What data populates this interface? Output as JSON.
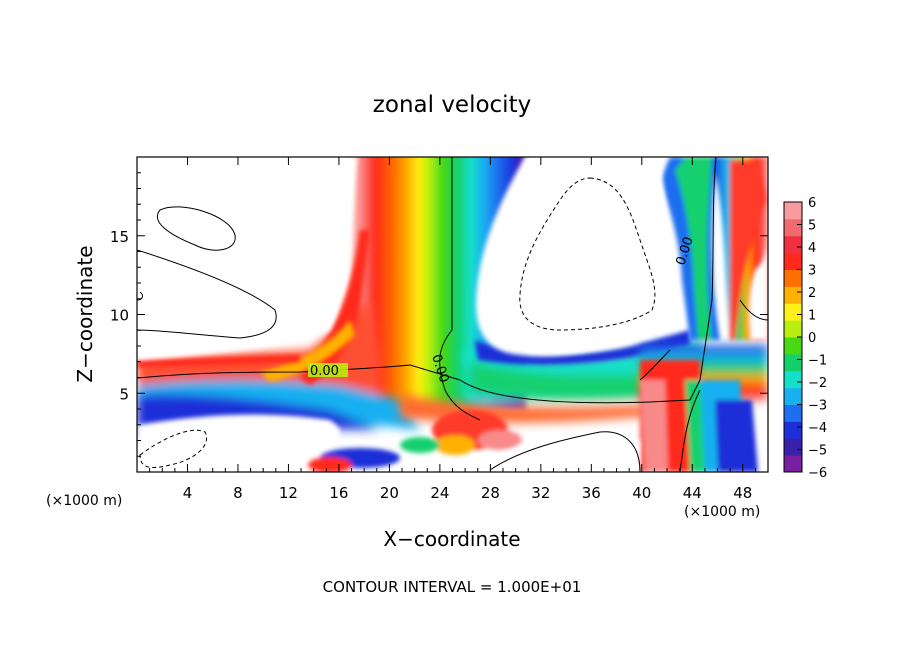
{
  "chart_data": {
    "type": "heatmap",
    "title": "zonal velocity",
    "xlabel": "X−coordinate",
    "ylabel": "Z−coordinate",
    "x_unit_left": "(×1000 m)",
    "x_unit_right": "(×1000 m)",
    "xlim": [
      0,
      50
    ],
    "ylim": [
      0,
      20
    ],
    "xticks": [
      "4",
      "8",
      "12",
      "16",
      "20",
      "24",
      "28",
      "32",
      "36",
      "40",
      "44",
      "48"
    ],
    "yticks": [
      "5",
      "10",
      "15"
    ],
    "colorbar": {
      "ticks": [
        "6",
        "5",
        "4",
        "3",
        "2",
        "1",
        "0",
        "−1",
        "−2",
        "−3",
        "−4",
        "−5",
        "−6"
      ],
      "range": [
        -6,
        6
      ],
      "colors": [
        "#7a1fa2",
        "#3a20a8",
        "#1d2fd8",
        "#1f6ef0",
        "#19b0f0",
        "#13e0c8",
        "#13d06a",
        "#4ad813",
        "#b8ee10",
        "#fff01a",
        "#ffb000",
        "#ff7000",
        "#ff2a1a",
        "#ee3040",
        "#f26a70",
        "#f89aa0"
      ]
    },
    "contour_labels": [
      "0.00",
      "0.00",
      "0.00"
    ],
    "footer": "CONTOUR INTERVAL = 1.000E+01",
    "fields": {
      "description": "approximate filled-contour bands of zonal velocity (x in km, z in km)",
      "red_plume_x": [
        17,
        22
      ],
      "green_plume_x": [
        22.5,
        26.5
      ],
      "blue_plume_x": [
        26.5,
        30
      ],
      "horizontal_jet_z": [
        4,
        7
      ],
      "right_column_x": [
        42,
        50
      ]
    }
  }
}
